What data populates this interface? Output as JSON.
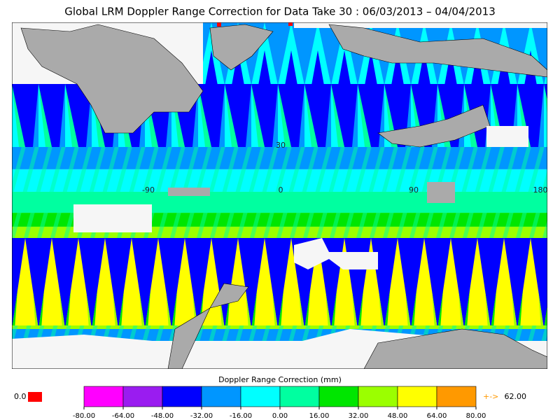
{
  "title": "Global LRM Doppler Range Correction for Data Take 30 : 06/03/2013 – 04/04/2013",
  "map": {
    "lon_labels": [
      "-90",
      "0",
      "90",
      "180"
    ],
    "lat_labels": [
      "30"
    ]
  },
  "colorbar": {
    "label": "Doppler Range Correction (mm)",
    "lim": [
      -80,
      80
    ],
    "ticks": [
      {
        "value": -80,
        "label": "-80.00"
      },
      {
        "value": -64,
        "label": "-64.00"
      },
      {
        "value": -48,
        "label": "-48.00"
      },
      {
        "value": -32,
        "label": "-32.00"
      },
      {
        "value": -16,
        "label": "-16.00"
      },
      {
        "value": 0,
        "label": "0.00"
      },
      {
        "value": 16,
        "label": "16.00"
      },
      {
        "value": 32,
        "label": "32.00"
      },
      {
        "value": 48,
        "label": "48.00"
      },
      {
        "value": 64,
        "label": "64.00"
      },
      {
        "value": 80,
        "label": "80.00"
      }
    ],
    "colors": [
      "#ff00ff",
      "#9a1cf0",
      "#0000ff",
      "#0096ff",
      "#00ffff",
      "#00ffa0",
      "#00e600",
      "#9bff00",
      "#ffff00",
      "#ff9900"
    ]
  },
  "missing": {
    "label": "0.0",
    "color": "#ff0000"
  },
  "maximum": {
    "marker": "+->",
    "value": {
      "value": 62,
      "label": "62.00"
    },
    "color": "#ff9900"
  }
}
